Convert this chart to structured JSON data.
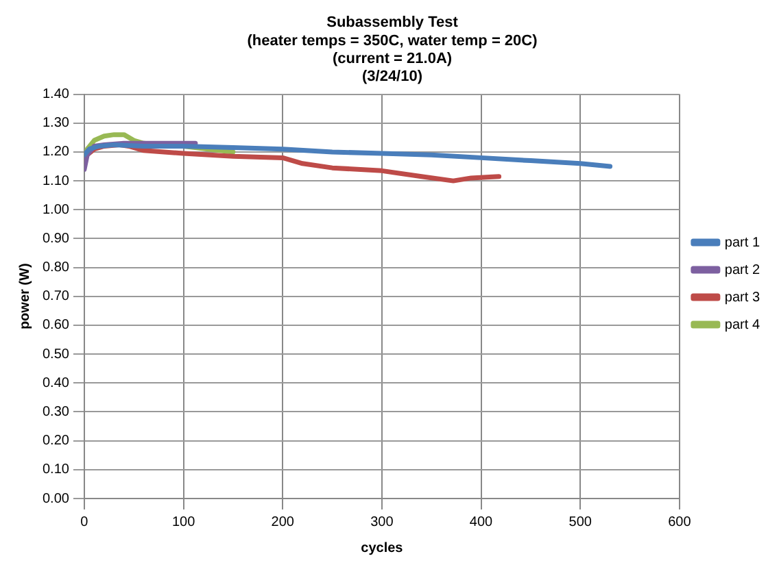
{
  "chart_data": {
    "type": "line",
    "title": [
      "Subassembly Test",
      "(heater temps = 350C, water temp = 20C)",
      "(current = 21.0A)",
      "(3/24/10)"
    ],
    "xlabel": "cycles",
    "ylabel": "power (W)",
    "xlim": [
      0,
      600
    ],
    "xticks": [
      0,
      100,
      200,
      300,
      400,
      500,
      600
    ],
    "ylim": [
      0,
      1.4
    ],
    "yticks": [
      {
        "value": 0,
        "label": "0.00"
      },
      {
        "value": 0.1,
        "label": "0.10"
      },
      {
        "value": 0.2,
        "label": "0.20"
      },
      {
        "value": 0.3,
        "label": "0.30"
      },
      {
        "value": 0.4,
        "label": "0.40"
      },
      {
        "value": 0.5,
        "label": "0.50"
      },
      {
        "value": 0.6,
        "label": "0.60"
      },
      {
        "value": 0.7,
        "label": "0.70"
      },
      {
        "value": 0.8,
        "label": "0.80"
      },
      {
        "value": 0.9,
        "label": "0.90"
      },
      {
        "value": 1.0,
        "label": "1.00"
      },
      {
        "value": 1.1,
        "label": "1.10"
      },
      {
        "value": 1.2,
        "label": "1.20"
      },
      {
        "value": 1.3,
        "label": "1.30"
      },
      {
        "value": 1.4,
        "label": "1.40"
      }
    ],
    "grid": true,
    "legend": "right",
    "marker": "none",
    "line_style": "solid",
    "series": [
      {
        "name": "part 1",
        "color": "#4a7ebb",
        "x": [
          0,
          5,
          15,
          30,
          60,
          100,
          150,
          200,
          250,
          300,
          350,
          400,
          450,
          500,
          530
        ],
        "values": [
          1.19,
          1.21,
          1.22,
          1.225,
          1.22,
          1.22,
          1.215,
          1.21,
          1.2,
          1.195,
          1.19,
          1.18,
          1.17,
          1.16,
          1.15
        ]
      },
      {
        "name": "part 2",
        "color": "#7d60a0",
        "x": [
          0,
          3,
          10,
          20,
          40,
          60,
          80,
          100,
          112
        ],
        "values": [
          1.14,
          1.19,
          1.22,
          1.225,
          1.23,
          1.23,
          1.23,
          1.23,
          1.23
        ]
      },
      {
        "name": "part 3",
        "color": "#be4b48",
        "x": [
          0,
          3,
          10,
          20,
          35,
          45,
          60,
          100,
          150,
          200,
          220,
          250,
          300,
          340,
          372,
          390,
          418
        ],
        "values": [
          1.165,
          1.19,
          1.21,
          1.22,
          1.225,
          1.22,
          1.205,
          1.195,
          1.185,
          1.18,
          1.16,
          1.145,
          1.135,
          1.115,
          1.1,
          1.11,
          1.115
        ]
      },
      {
        "name": "part 4",
        "color": "#98b954",
        "x": [
          0,
          3,
          10,
          20,
          30,
          40,
          50,
          60,
          80,
          100,
          125,
          150
        ],
        "values": [
          1.17,
          1.21,
          1.24,
          1.255,
          1.26,
          1.26,
          1.24,
          1.23,
          1.225,
          1.22,
          1.21,
          1.2
        ]
      }
    ]
  }
}
